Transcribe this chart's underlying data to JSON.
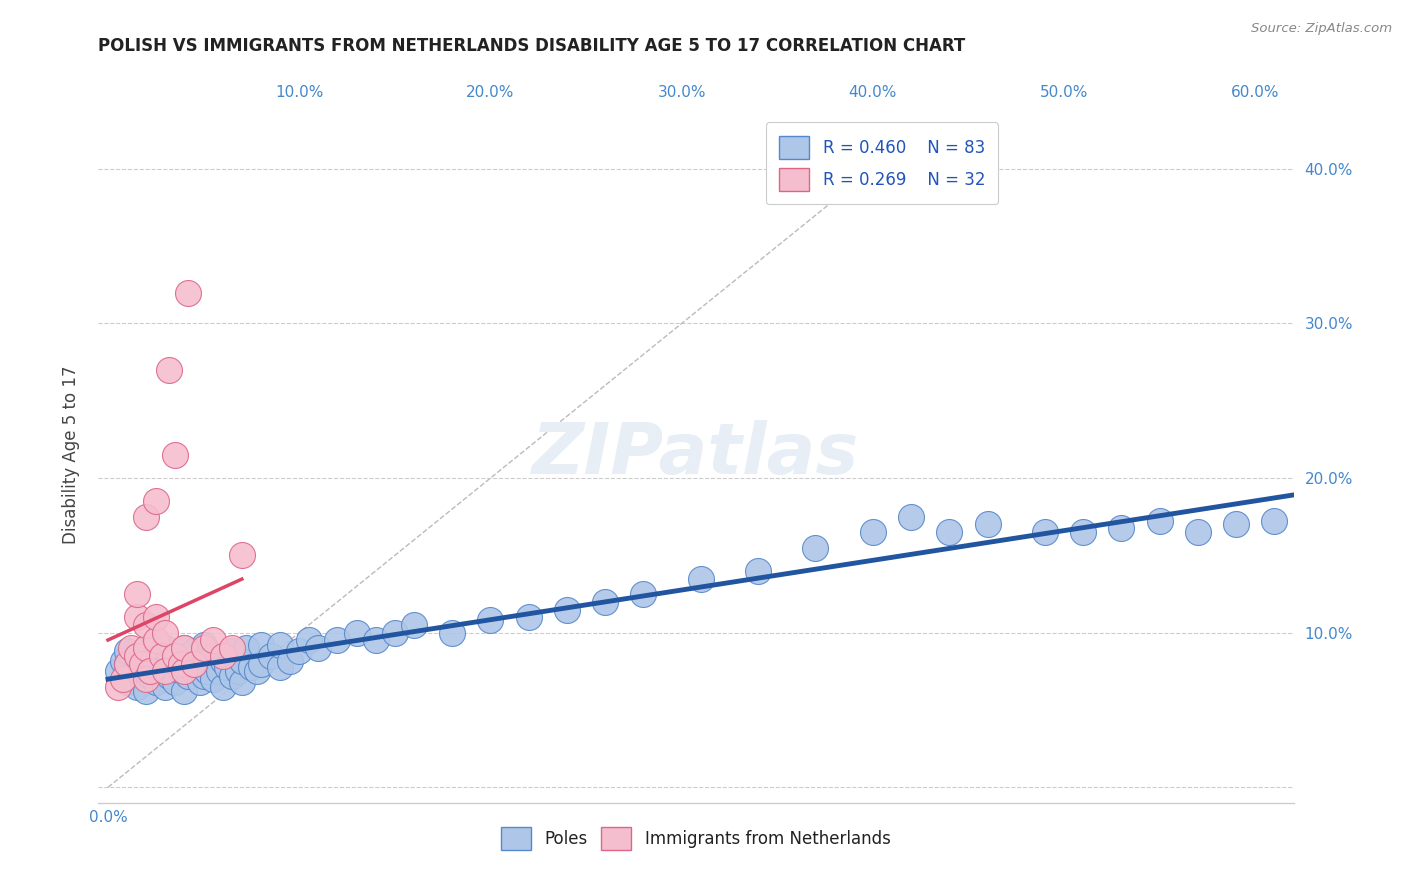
{
  "title": "POLISH VS IMMIGRANTS FROM NETHERLANDS DISABILITY AGE 5 TO 17 CORRELATION CHART",
  "source": "Source: ZipAtlas.com",
  "ylabel": "Disability Age 5 to 17",
  "xlim": [
    -0.005,
    0.62
  ],
  "ylim": [
    -0.01,
    0.44
  ],
  "xticks": [
    0.0,
    0.1,
    0.2,
    0.3,
    0.4,
    0.5,
    0.6
  ],
  "yticks": [
    0.0,
    0.1,
    0.2,
    0.3,
    0.4
  ],
  "xtick_labels": [
    "0.0%",
    "",
    "",
    "",
    "",
    "",
    ""
  ],
  "xtick_labels_right": [
    "",
    "10.0%",
    "20.0%",
    "30.0%",
    "40.0%",
    "50.0%",
    "60.0%"
  ],
  "ytick_labels_right": [
    "",
    "10.0%",
    "20.0%",
    "30.0%",
    "40.0%"
  ],
  "legend_labels": [
    "Poles",
    "Immigrants from Netherlands"
  ],
  "blue_R": 0.46,
  "blue_N": 83,
  "pink_R": 0.269,
  "pink_N": 32,
  "blue_color": "#aec6e8",
  "blue_edge": "#5588cc",
  "pink_color": "#f5bece",
  "pink_edge": "#dd6688",
  "blue_line_color": "#2255a0",
  "pink_line_color": "#dd4466",
  "diag_line_color": "#bbbbbb",
  "grid_color": "#cccccc",
  "title_color": "#222222",
  "axis_label_color": "#444444",
  "tick_color": "#4488cc",
  "legend_R_color": "#2255bb",
  "background_color": "#ffffff",
  "watermark": "ZIPatlas",
  "blue_x": [
    0.005,
    0.008,
    0.01,
    0.01,
    0.01,
    0.012,
    0.015,
    0.015,
    0.018,
    0.02,
    0.02,
    0.02,
    0.022,
    0.025,
    0.025,
    0.025,
    0.028,
    0.03,
    0.03,
    0.03,
    0.032,
    0.035,
    0.035,
    0.038,
    0.04,
    0.04,
    0.04,
    0.042,
    0.045,
    0.045,
    0.048,
    0.05,
    0.05,
    0.05,
    0.052,
    0.055,
    0.055,
    0.058,
    0.06,
    0.06,
    0.062,
    0.065,
    0.065,
    0.068,
    0.07,
    0.07,
    0.072,
    0.075,
    0.078,
    0.08,
    0.08,
    0.085,
    0.09,
    0.09,
    0.095,
    0.1,
    0.105,
    0.11,
    0.12,
    0.13,
    0.14,
    0.15,
    0.16,
    0.18,
    0.2,
    0.22,
    0.24,
    0.26,
    0.28,
    0.31,
    0.34,
    0.37,
    0.4,
    0.42,
    0.44,
    0.46,
    0.49,
    0.51,
    0.53,
    0.55,
    0.57,
    0.59,
    0.61
  ],
  "blue_y": [
    0.075,
    0.082,
    0.068,
    0.08,
    0.088,
    0.072,
    0.065,
    0.085,
    0.078,
    0.062,
    0.075,
    0.088,
    0.072,
    0.068,
    0.08,
    0.092,
    0.075,
    0.065,
    0.078,
    0.09,
    0.072,
    0.068,
    0.082,
    0.075,
    0.062,
    0.078,
    0.09,
    0.072,
    0.075,
    0.088,
    0.068,
    0.072,
    0.08,
    0.092,
    0.075,
    0.07,
    0.085,
    0.075,
    0.065,
    0.082,
    0.078,
    0.072,
    0.088,
    0.075,
    0.068,
    0.082,
    0.09,
    0.078,
    0.075,
    0.08,
    0.092,
    0.085,
    0.078,
    0.092,
    0.082,
    0.088,
    0.095,
    0.09,
    0.095,
    0.1,
    0.095,
    0.1,
    0.105,
    0.1,
    0.108,
    0.11,
    0.115,
    0.12,
    0.125,
    0.135,
    0.14,
    0.155,
    0.165,
    0.175,
    0.165,
    0.17,
    0.165,
    0.165,
    0.168,
    0.172,
    0.165,
    0.17,
    0.172
  ],
  "pink_x": [
    0.005,
    0.008,
    0.01,
    0.012,
    0.015,
    0.015,
    0.015,
    0.018,
    0.02,
    0.02,
    0.02,
    0.02,
    0.022,
    0.025,
    0.025,
    0.025,
    0.028,
    0.03,
    0.03,
    0.032,
    0.035,
    0.035,
    0.038,
    0.04,
    0.04,
    0.042,
    0.045,
    0.05,
    0.055,
    0.06,
    0.065,
    0.07
  ],
  "pink_y": [
    0.065,
    0.07,
    0.08,
    0.09,
    0.085,
    0.11,
    0.125,
    0.08,
    0.07,
    0.09,
    0.105,
    0.175,
    0.075,
    0.095,
    0.11,
    0.185,
    0.085,
    0.075,
    0.1,
    0.27,
    0.085,
    0.215,
    0.08,
    0.075,
    0.09,
    0.32,
    0.08,
    0.09,
    0.095,
    0.085,
    0.09,
    0.15
  ]
}
